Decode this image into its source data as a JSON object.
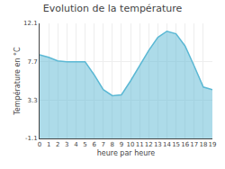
{
  "chart_data": {
    "type": "area",
    "title": "Evolution de la température",
    "xlabel": "heure par heure",
    "ylabel": "Température en °C",
    "x": [
      0,
      1,
      2,
      3,
      4,
      5,
      6,
      7,
      8,
      9,
      10,
      11,
      12,
      13,
      14,
      15,
      16,
      17,
      18,
      19
    ],
    "values": [
      8.5,
      8.2,
      7.8,
      7.7,
      7.7,
      7.7,
      6.2,
      4.5,
      3.8,
      3.9,
      5.5,
      7.2,
      9.0,
      10.5,
      11.2,
      10.9,
      9.5,
      7.2,
      4.8,
      4.5
    ],
    "color": "#5bb8d4",
    "xlim": [
      0,
      19
    ],
    "ylim": [
      -1.1,
      12.1
    ],
    "xticks": [
      0,
      1,
      2,
      3,
      4,
      5,
      6,
      7,
      8,
      9,
      10,
      11,
      12,
      13,
      14,
      15,
      16,
      17,
      18,
      19
    ],
    "yticks": [
      -1.1,
      3.3,
      7.7,
      12.1
    ],
    "grid": true
  }
}
